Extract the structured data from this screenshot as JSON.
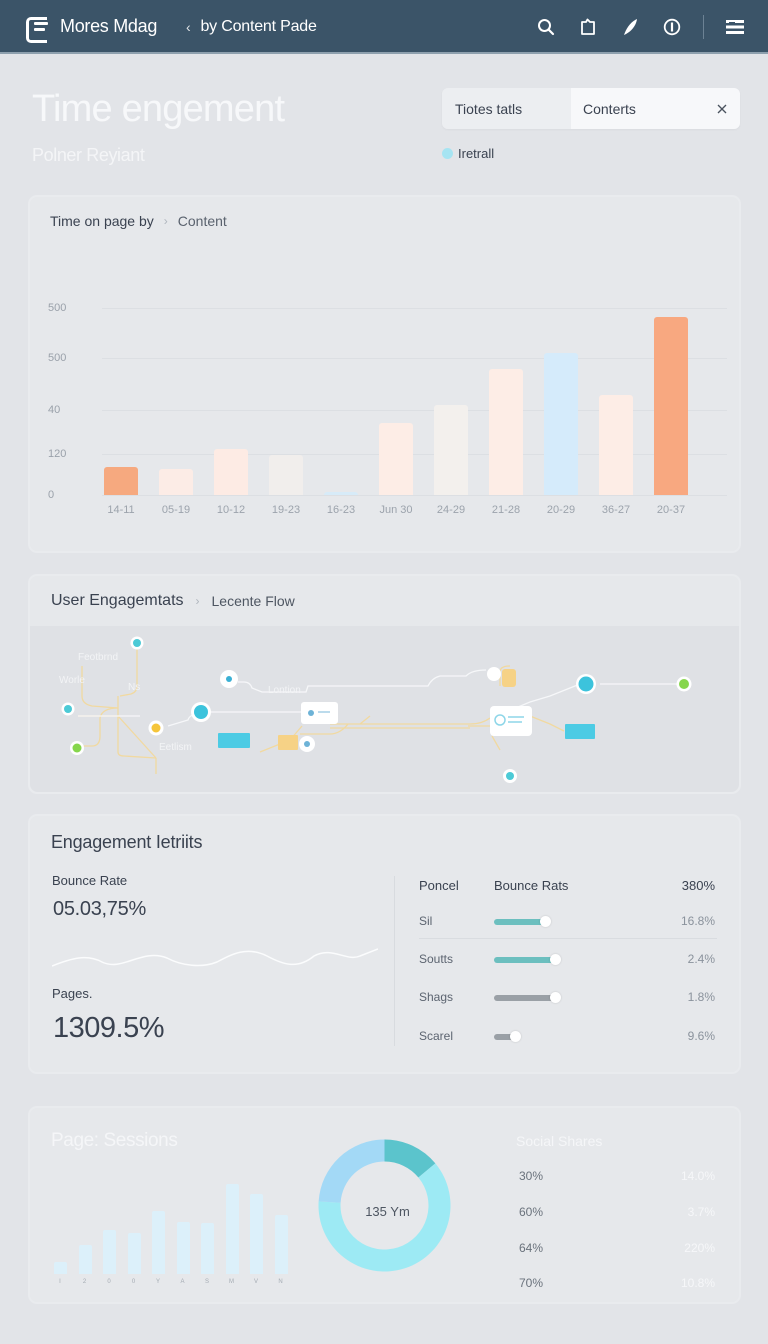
{
  "topbar": {
    "brand": "Mores Mdag",
    "breadcrumb": "by Content Pade",
    "icons": [
      "search-icon",
      "document-icon",
      "feather-icon",
      "info-icon",
      "menu-icon"
    ]
  },
  "hero": {
    "title": "Time engement",
    "subtitle": "Polner Reyiant",
    "segment": {
      "tab1": "Tiotes tatls",
      "tab2": "Conterts"
    },
    "legend": {
      "label": "Iretrall",
      "color": "#a6e4f2"
    }
  },
  "time_chart": {
    "title": "Time on page by",
    "subtitle": "Content"
  },
  "flow": {
    "title": "User Engagemtats",
    "subtitle": "Lecente Flow",
    "labels": [
      "Feotbrnd",
      "Worle",
      "Ns",
      "Lontion",
      "Eetlism"
    ]
  },
  "metrics": {
    "title": "Engagement Ietriits",
    "bounce_label": "Bounce Rate",
    "bounce_value": "05.03,75%",
    "pages_label": "Pages.",
    "pages_value": "1309.5%",
    "table": {
      "headers": [
        "Poncel",
        "Bounce Rats",
        "380%"
      ],
      "rows": [
        {
          "label": "Sil",
          "value": "16.8%",
          "fill": 52,
          "color": "#6cbfbf"
        },
        {
          "label": "Soutts",
          "value": "2.4%",
          "fill": 62,
          "color": "#6cbfbf"
        },
        {
          "label": "Shags",
          "value": "1.8%",
          "fill": 62,
          "color": "#9aa0a6"
        },
        {
          "label": "Scarel",
          "value": "9.6%",
          "fill": 22,
          "color": "#9aa0a6"
        }
      ]
    }
  },
  "sessions": {
    "title": "Page: Sessions",
    "donut_center": "135 Ym",
    "social_title": "Social Shares",
    "social_rows": [
      {
        "left": "30%",
        "right": "14.0%"
      },
      {
        "left": "60%",
        "right": "3.7%"
      },
      {
        "left": "64%",
        "right": "220%"
      },
      {
        "left": "70%",
        "right": "10.8%"
      }
    ]
  },
  "chart_data": [
    {
      "type": "bar",
      "title": "Time on page by > Content",
      "categories": [
        "14-11",
        "05-19",
        "10-12",
        "19-23",
        "16-23",
        "Jun 30",
        "24-29",
        "21-28",
        "20-29",
        "36-27",
        "20-37"
      ],
      "values": [
        55,
        50,
        90,
        78,
        5,
        140,
        175,
        245,
        275,
        195,
        345
      ],
      "colors": [
        "#f6a97f",
        "#fcece6",
        "#fdebe4",
        "#f1eeec",
        "#d7ebf8",
        "#fdede6",
        "#f3f0ed",
        "#fdede6",
        "#d5ebfb",
        "#fdede6",
        "#f8a880"
      ],
      "yticks": [
        "0",
        "120",
        "40",
        "500",
        "500"
      ],
      "ytick_positions": [
        0,
        86,
        181,
        290,
        396
      ],
      "xlabel": "",
      "ylabel": "",
      "ylim": [
        0,
        420
      ],
      "grid": true
    },
    {
      "type": "bar",
      "title": "Page: Sessions",
      "categories": [
        "I",
        "2",
        "0",
        "0",
        "Y",
        "A",
        "S",
        "M",
        "V",
        "N"
      ],
      "values": [
        12,
        30,
        45,
        42,
        64,
        53,
        52,
        92,
        82,
        60
      ],
      "ylim": [
        0,
        100
      ]
    },
    {
      "type": "pie",
      "title": "Sessions donut",
      "center_label": "135 Ym",
      "labels": [
        "segment-a",
        "segment-b",
        "segment-c"
      ],
      "values": [
        14,
        62,
        24
      ],
      "colors": [
        "#5bc4cc",
        "#9deaf4",
        "#a3d9f6"
      ]
    }
  ]
}
